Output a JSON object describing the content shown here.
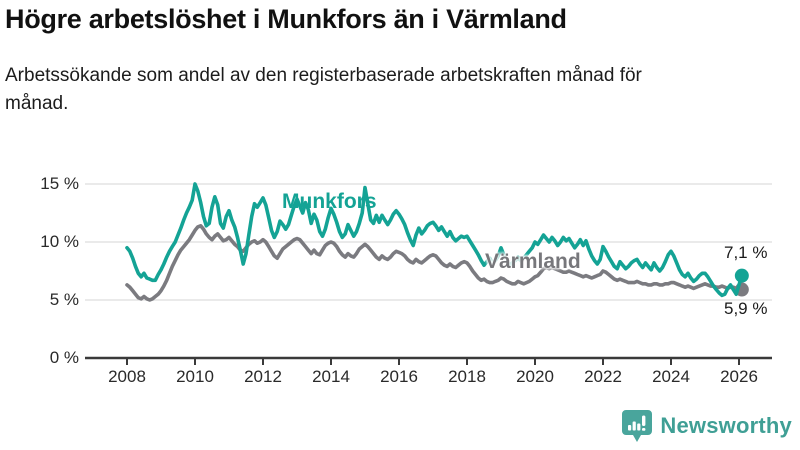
{
  "header": {
    "title": "Högre arbetslöshet i Munkfors än i Värmland",
    "subtitle": "Arbetssökande som andel av den registerbaserade arbetskraften månad för månad."
  },
  "chart_data": {
    "type": "line",
    "title": "Högre arbetslöshet i Munkfors än i Värmland",
    "xlabel": "",
    "ylabel": "%",
    "x_unit": "month",
    "x_start_year": 2008,
    "x_end": "2026-02",
    "ylim": [
      0,
      15
    ],
    "grid": "horizontal",
    "legend_position": "inline-labels",
    "x_ticks": [
      "2008",
      "2010",
      "2012",
      "2014",
      "2016",
      "2018",
      "2020",
      "2022",
      "2024",
      "2026"
    ],
    "y_ticks": [
      {
        "v": 0,
        "label": "0 %"
      },
      {
        "v": 5,
        "label": "5 %"
      },
      {
        "v": 10,
        "label": "10 %"
      },
      {
        "v": 15,
        "label": "15 %"
      }
    ],
    "series": [
      {
        "name": "Munkfors",
        "color": "#14a395",
        "end_label": "7,1 %",
        "end_value": 7.1,
        "values": [
          9.5,
          9.2,
          8.6,
          7.9,
          7.3,
          7.0,
          7.3,
          6.9,
          6.8,
          6.7,
          6.7,
          7.2,
          7.6,
          8.1,
          8.7,
          9.2,
          9.6,
          10.0,
          10.6,
          11.2,
          11.9,
          12.5,
          13.0,
          13.6,
          15.0,
          14.4,
          13.4,
          12.2,
          11.4,
          11.6,
          13.0,
          13.9,
          13.2,
          11.6,
          11.2,
          12.2,
          12.7,
          11.9,
          11.3,
          10.4,
          9.3,
          8.1,
          9.0,
          10.6,
          12.2,
          13.3,
          13.0,
          13.4,
          13.8,
          13.2,
          12.1,
          11.0,
          10.4,
          10.9,
          11.8,
          11.5,
          11.1,
          11.5,
          12.3,
          13.1,
          13.7,
          13.1,
          12.5,
          13.4,
          12.8,
          11.6,
          12.4,
          11.9,
          10.9,
          10.5,
          11.1,
          12.1,
          12.9,
          12.4,
          11.7,
          10.9,
          10.4,
          10.7,
          11.5,
          11.0,
          10.5,
          10.9,
          11.6,
          12.5,
          14.7,
          13.3,
          11.9,
          11.6,
          12.3,
          11.7,
          12.3,
          11.9,
          11.5,
          11.9,
          12.4,
          12.7,
          12.4,
          12.0,
          11.5,
          10.8,
          10.2,
          9.7,
          10.6,
          11.2,
          10.7,
          11.0,
          11.4,
          11.6,
          11.7,
          11.4,
          11.0,
          11.3,
          10.9,
          10.5,
          10.9,
          10.4,
          10.1,
          10.3,
          10.5,
          10.4,
          10.5,
          10.1,
          9.7,
          9.3,
          8.9,
          8.4,
          8.0,
          8.3,
          8.6,
          8.2,
          8.4,
          8.8,
          9.5,
          8.9,
          8.3,
          8.0,
          8.2,
          8.4,
          8.7,
          8.4,
          8.6,
          8.9,
          9.2,
          9.5,
          10.0,
          9.8,
          10.2,
          10.6,
          10.3,
          10.0,
          10.4,
          10.1,
          9.7,
          10.0,
          10.4,
          10.1,
          10.3,
          9.9,
          9.5,
          9.8,
          10.2,
          9.7,
          10.1,
          9.4,
          8.8,
          8.4,
          8.1,
          8.5,
          9.6,
          9.2,
          8.7,
          8.3,
          7.9,
          7.7,
          8.3,
          8.0,
          7.7,
          7.9,
          8.2,
          8.4,
          8.5,
          8.1,
          7.8,
          8.2,
          7.9,
          7.6,
          8.2,
          7.8,
          7.5,
          7.8,
          8.3,
          8.9,
          9.2,
          8.8,
          8.2,
          7.6,
          7.2,
          7.0,
          7.3,
          6.9,
          6.6,
          6.8,
          7.1,
          7.3,
          7.3,
          7.0,
          6.6,
          6.2,
          5.9,
          5.6,
          5.4,
          5.5,
          6.0,
          6.3,
          5.9,
          5.5,
          6.3,
          7.1
        ]
      },
      {
        "name": "Värmland",
        "color": "#7b7b80",
        "end_label": "5,9 %",
        "end_value": 5.9,
        "values": [
          6.3,
          6.1,
          5.8,
          5.5,
          5.2,
          5.1,
          5.3,
          5.1,
          5.0,
          5.1,
          5.3,
          5.5,
          5.8,
          6.2,
          6.7,
          7.3,
          7.9,
          8.4,
          8.9,
          9.3,
          9.6,
          9.9,
          10.2,
          10.6,
          11.0,
          11.3,
          11.4,
          11.1,
          10.7,
          10.4,
          10.2,
          10.5,
          10.7,
          10.4,
          10.1,
          10.2,
          10.4,
          10.1,
          9.8,
          9.6,
          9.3,
          9.2,
          9.5,
          9.8,
          10.0,
          10.1,
          9.9,
          10.0,
          10.2,
          10.0,
          9.6,
          9.2,
          8.8,
          8.6,
          9.0,
          9.4,
          9.6,
          9.8,
          10.0,
          10.2,
          10.3,
          10.2,
          9.9,
          9.6,
          9.3,
          9.0,
          9.3,
          9.0,
          8.9,
          9.3,
          9.7,
          9.9,
          10.0,
          9.9,
          9.6,
          9.2,
          8.9,
          8.7,
          9.0,
          8.8,
          8.7,
          9.0,
          9.4,
          9.6,
          9.8,
          9.6,
          9.3,
          9.0,
          8.7,
          8.5,
          8.8,
          8.6,
          8.5,
          8.7,
          9.0,
          9.2,
          9.1,
          9.0,
          8.8,
          8.5,
          8.3,
          8.2,
          8.5,
          8.3,
          8.2,
          8.4,
          8.6,
          8.8,
          8.9,
          8.8,
          8.5,
          8.2,
          8.0,
          7.9,
          8.1,
          7.9,
          7.8,
          8.0,
          8.2,
          8.3,
          8.2,
          7.9,
          7.5,
          7.2,
          6.9,
          6.7,
          6.8,
          6.6,
          6.5,
          6.5,
          6.6,
          6.7,
          6.9,
          6.8,
          6.6,
          6.5,
          6.4,
          6.4,
          6.6,
          6.5,
          6.4,
          6.5,
          6.6,
          6.8,
          7.0,
          7.1,
          7.4,
          7.7,
          7.8,
          7.7,
          7.8,
          7.7,
          7.6,
          7.5,
          7.4,
          7.4,
          7.5,
          7.4,
          7.3,
          7.2,
          7.1,
          7.0,
          7.1,
          7.0,
          6.9,
          7.0,
          7.1,
          7.2,
          7.5,
          7.4,
          7.2,
          7.0,
          6.8,
          6.7,
          6.8,
          6.7,
          6.6,
          6.5,
          6.5,
          6.5,
          6.6,
          6.5,
          6.4,
          6.4,
          6.3,
          6.3,
          6.4,
          6.4,
          6.3,
          6.3,
          6.4,
          6.4,
          6.5,
          6.5,
          6.4,
          6.3,
          6.2,
          6.1,
          6.2,
          6.1,
          6.0,
          6.1,
          6.2,
          6.3,
          6.4,
          6.3,
          6.2,
          6.2,
          6.1,
          6.1,
          6.2,
          6.1,
          6.0,
          6.1,
          6.1,
          6.0,
          6.0,
          5.9
        ]
      }
    ]
  },
  "branding": {
    "logo_text": "Newsworthy",
    "logo_icon": "bar-chart-speech-bubble-icon",
    "logo_color": "#3f9f95"
  },
  "colors": {
    "munkfors_line": "#14a395",
    "varmland_line": "#7b7b80",
    "axis": "#3a3a3a",
    "gridline": "#e3e3e3",
    "text": "#1a1a1a"
  }
}
